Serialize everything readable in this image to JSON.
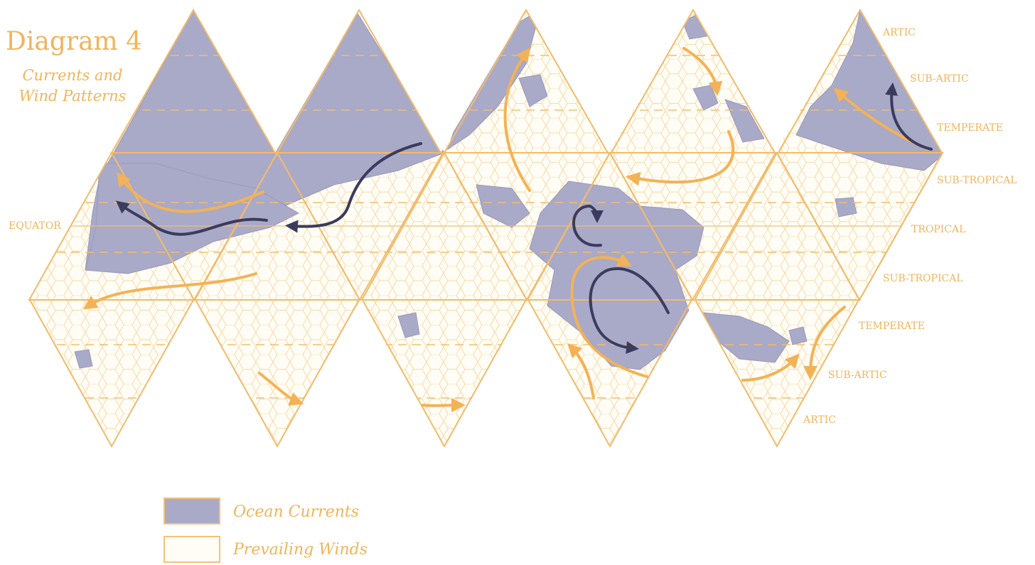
{
  "title": "Diagram 4",
  "subtitle_line1": "Currents and",
  "subtitle_line2": "Wind Patterns",
  "bands": {
    "artic_top": "ARTIC",
    "subartic_top": "SUB-ARTIC",
    "temperate_top": "TEMPERATE",
    "subtropical_top": "SUB-TROPICAL",
    "equator": "EQUATOR",
    "tropical": "TROPICAL",
    "subtropical_bottom": "SUB-TROPICAL",
    "temperate_bottom": "TEMPERATE",
    "subartic_bottom": "SUB-ARTIC",
    "artic_bottom": "ARTIC"
  },
  "legend": {
    "ocean_currents": "Ocean Currents",
    "prevailing_winds": "Prevailing Winds"
  },
  "colors": {
    "land": "#a9a9c8",
    "current_arrow": "#3b3b5e",
    "wind_arrow": "#f3b255",
    "grid_line": "#f5c985",
    "paper": "#fffdf5",
    "label": "#f0b45a"
  },
  "icons": [
    "ocean-current-arrow-icon",
    "prevailing-wind-arrow-icon"
  ]
}
